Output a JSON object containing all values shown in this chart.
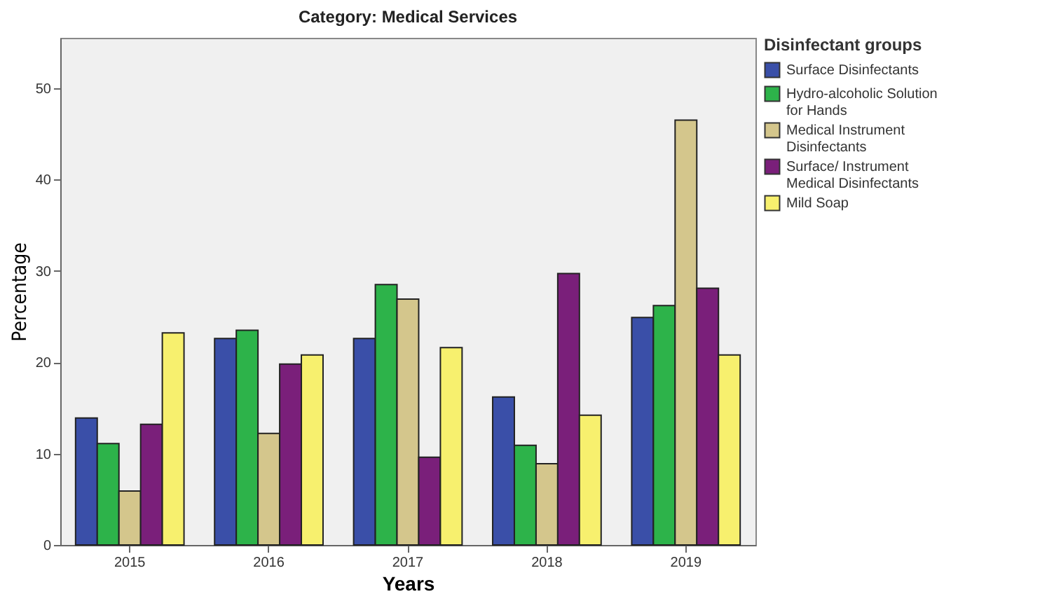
{
  "chart_data": {
    "type": "bar",
    "title": "Category: Medical Services",
    "xlabel": "Years",
    "ylabel": "Percentage",
    "legend_title": "Disinfectant groups",
    "legend": "top right",
    "categories": [
      "2015",
      "2016",
      "2017",
      "2018",
      "2019"
    ],
    "series": [
      {
        "name": "Surface Disinfectants",
        "color": "#3a4fa8",
        "values": [
          13.9,
          22.6,
          22.6,
          16.2,
          24.9
        ]
      },
      {
        "name": "Hydro-alcoholic Solution for Hands",
        "color": "#2db34a",
        "values": [
          11.1,
          23.5,
          28.5,
          10.9,
          26.2
        ]
      },
      {
        "name": "Medical Instrument Disinfectants",
        "color": "#d4c68c",
        "values": [
          5.9,
          12.2,
          26.9,
          8.9,
          46.5
        ]
      },
      {
        "name": "Surface/ Instrument Medical Disinfectants",
        "color": "#7a1f7a",
        "values": [
          13.2,
          19.8,
          9.6,
          29.7,
          28.1
        ]
      },
      {
        "name": "Mild Soap",
        "color": "#f7f06e",
        "values": [
          23.2,
          20.8,
          21.6,
          14.2,
          20.8
        ]
      }
    ],
    "ylim": [
      0,
      55.5
    ],
    "yticks": [
      0,
      10,
      20,
      30,
      40,
      50
    ],
    "grid": false
  }
}
